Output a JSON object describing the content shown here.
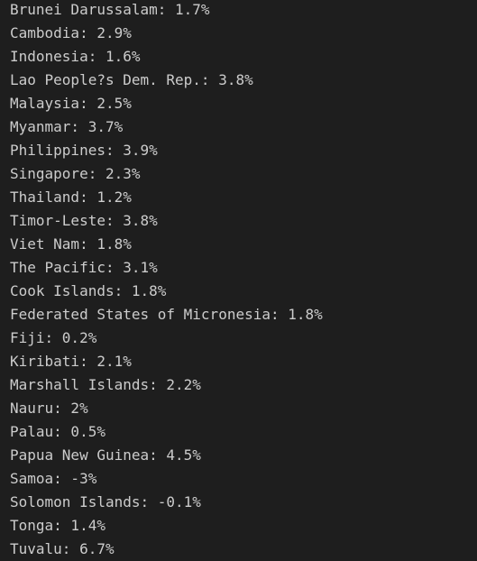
{
  "console": {
    "lines": [
      "Brunei Darussalam: 1.7%",
      "Cambodia: 2.9%",
      "Indonesia: 1.6%",
      "Lao People?s Dem. Rep.: 3.8%",
      "Malaysia: 2.5%",
      "Myanmar: 3.7%",
      "Philippines: 3.9%",
      "Singapore: 2.3%",
      "Thailand: 1.2%",
      "Timor-Leste: 3.8%",
      "Viet Nam: 1.8%",
      "The Pacific: 3.1%",
      "Cook Islands: 1.8%",
      "Federated States of Micronesia: 1.8%",
      "Fiji: 0.2%",
      "Kiribati: 2.1%",
      "Marshall Islands: 2.2%",
      "Nauru: 2%",
      "Palau: 0.5%",
      "Papua New Guinea: 4.5%",
      "Samoa: -3%",
      "Solomon Islands: -0.1%",
      "Tonga: 1.4%",
      "Tuvalu: 6.7%"
    ],
    "colors": {
      "background": "#1e1e1e",
      "text": "#cccccc"
    }
  }
}
